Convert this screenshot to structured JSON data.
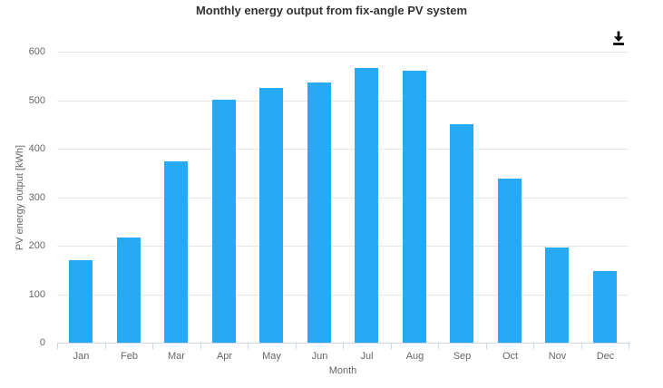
{
  "chart_data": {
    "type": "bar",
    "title": "Monthly energy output from fix-angle PV system",
    "categories": [
      "Jan",
      "Feb",
      "Mar",
      "Apr",
      "May",
      "Jun",
      "Jul",
      "Aug",
      "Sep",
      "Oct",
      "Nov",
      "Dec"
    ],
    "values": [
      170,
      216,
      374,
      501,
      526,
      536,
      567,
      561,
      451,
      339,
      196,
      147
    ],
    "xlabel": "Month",
    "ylabel": "PV energy output [kWh]",
    "ylim": [
      0,
      600
    ],
    "yticks": [
      0,
      100,
      200,
      300,
      400,
      500,
      600
    ],
    "grid": true,
    "legend_position": "none",
    "colors": {
      "bar": "#27aaf5",
      "grid": "#e6e6e6",
      "axis_line": "#ccd6eb",
      "tick_label": "#666666",
      "axis_title": "#666666",
      "chart_title": "#333333",
      "icon": "#000000",
      "background": "#ffffff"
    }
  },
  "toolbar": {
    "icons": [
      {
        "name": "download-icon"
      }
    ]
  }
}
